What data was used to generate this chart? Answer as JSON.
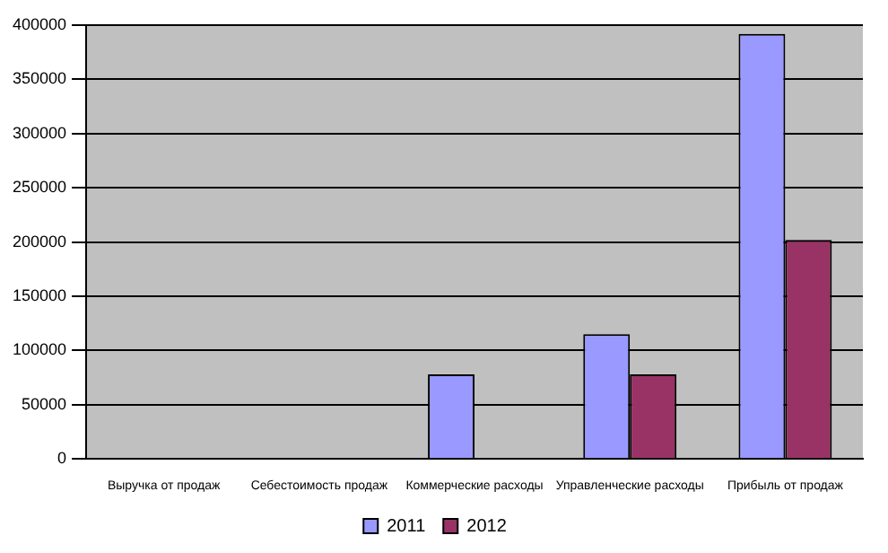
{
  "chart_data": {
    "type": "bar",
    "categories": [
      "Выручка от продаж",
      "Себестоимость продаж",
      "Коммерческие расходы",
      "Управленческие расходы",
      "Прибыль от продаж"
    ],
    "series": [
      {
        "name": "2011",
        "color": "#9999ff",
        "values": [
          0,
          0,
          78000,
          115000,
          392000
        ]
      },
      {
        "name": "2012",
        "color": "#993366",
        "values": [
          0,
          0,
          0,
          78000,
          202000
        ]
      }
    ],
    "ylim": [
      0,
      400000
    ],
    "yticks": [
      0,
      50000,
      100000,
      150000,
      200000,
      250000,
      300000,
      350000,
      400000
    ],
    "grid": "y",
    "legend": "bottom"
  }
}
